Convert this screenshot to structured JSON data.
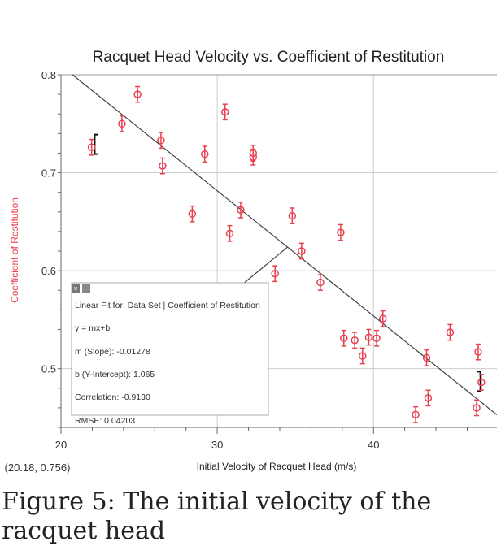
{
  "chart_data": {
    "type": "scatter",
    "title": "Racquet Head Velocity vs. Coefficient of Restitution",
    "xlabel": "Initial Velocity of Racquet Head (m/s)",
    "ylabel": "Coefficient of Restitution",
    "xlim": [
      20,
      47.9
    ],
    "ylim": [
      0.44,
      0.8
    ],
    "xticks": [
      20,
      30,
      40
    ],
    "yticks": [
      0.5,
      0.6,
      0.7,
      0.8
    ],
    "grid": true,
    "marker_color": "#e8404f",
    "error_bar": 0.008,
    "points": [
      [
        21.96,
        0.726
      ],
      [
        23.9,
        0.75
      ],
      [
        24.9,
        0.78
      ],
      [
        26.4,
        0.733
      ],
      [
        26.5,
        0.707
      ],
      [
        28.4,
        0.658
      ],
      [
        29.2,
        0.719
      ],
      [
        30.5,
        0.762
      ],
      [
        30.8,
        0.638
      ],
      [
        31.5,
        0.662
      ],
      [
        32.3,
        0.72
      ],
      [
        32.3,
        0.716
      ],
      [
        33.7,
        0.597
      ],
      [
        34.8,
        0.656
      ],
      [
        35.4,
        0.62
      ],
      [
        36.6,
        0.588
      ],
      [
        37.9,
        0.639
      ],
      [
        38.1,
        0.531
      ],
      [
        38.8,
        0.529
      ],
      [
        39.3,
        0.513
      ],
      [
        39.7,
        0.532
      ],
      [
        40.2,
        0.531
      ],
      [
        40.6,
        0.551
      ],
      [
        42.7,
        0.453
      ],
      [
        43.4,
        0.511
      ],
      [
        43.5,
        0.47
      ],
      [
        44.9,
        0.537
      ],
      [
        46.6,
        0.46
      ],
      [
        46.7,
        0.517
      ],
      [
        46.9,
        0.486
      ]
    ],
    "fit": {
      "slope": -0.01278,
      "intercept": 1.065
    },
    "selection_range": [
      22,
      47
    ],
    "annotation": {
      "lines": [
        "Linear Fit for: Data Set | Coefficient of Restitution",
        "y = mx+b",
        "m (Slope): -0.01278",
        "b (Y-Intercept): 1.065",
        "Correlation: -0.9130",
        "RMSE: 0.04203"
      ]
    },
    "cursor_readout": "(20.18, 0.756)"
  },
  "caption": "Figure 5: The initial velocity of the racquet head"
}
